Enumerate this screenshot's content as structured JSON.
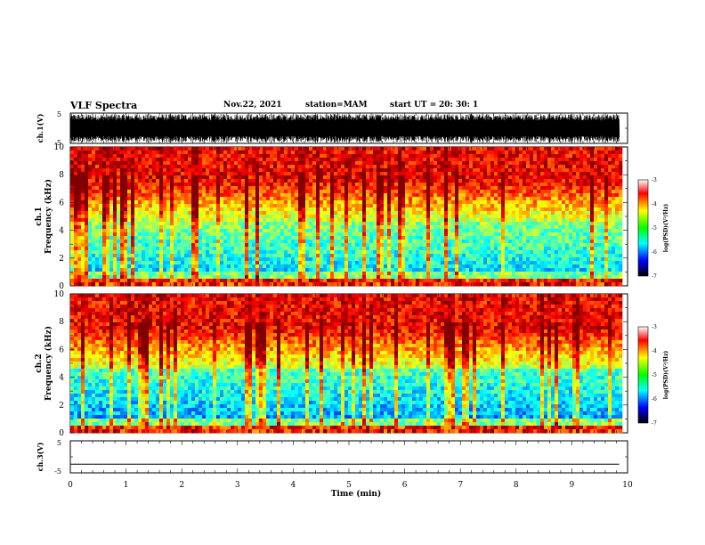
{
  "header": {
    "title": "VLF Spectra",
    "date": "Nov.22, 2021",
    "station": "station=MAM",
    "start_label": "start  UT  =",
    "start_time": "20: 30: 1"
  },
  "chart_data": [
    {
      "type": "line",
      "name": "ch1-waveform",
      "ylabel": "ch.1(V)",
      "ylim": [
        -5,
        5
      ],
      "yticks": [
        "5",
        "-5"
      ],
      "xlim": [
        0,
        10
      ],
      "note": "dense waveform trace"
    },
    {
      "type": "heatmap",
      "name": "ch1-spectrogram",
      "ylabel_top": "ch.1",
      "ylabel": "Frequency  (kHz)",
      "ylim": [
        0,
        10
      ],
      "yticks": [
        "0",
        "2",
        "4",
        "6",
        "8",
        "10"
      ],
      "xlim": [
        0,
        10
      ],
      "colorbar": {
        "label": "log(PSD)(V²/Hz)",
        "ticks": [
          "-3",
          "-4",
          "-5",
          "-6",
          "-7"
        ],
        "range": [
          -7,
          -3
        ]
      }
    },
    {
      "type": "heatmap",
      "name": "ch2-spectrogram",
      "ylabel_top": "ch.2",
      "ylabel": "Frequency  (kHz)",
      "ylim": [
        0,
        10
      ],
      "yticks": [
        "0",
        "2",
        "4",
        "6",
        "8",
        "10"
      ],
      "xlim": [
        0,
        10
      ],
      "colorbar": {
        "label": "log(PSD)(V²/Hz)",
        "ticks": [
          "-3",
          "-4",
          "-5",
          "-6",
          "-7"
        ],
        "range": [
          -7,
          -3
        ]
      }
    },
    {
      "type": "line",
      "name": "ch3-waveform",
      "ylabel": "ch.3(V)",
      "ylim": [
        -5,
        5
      ],
      "yticks": [
        "5",
        "-5"
      ],
      "xlim": [
        0,
        10
      ],
      "xlabel": "Time  (min)",
      "xticks": [
        "0",
        "1",
        "2",
        "3",
        "4",
        "5",
        "6",
        "7",
        "8",
        "9",
        "10"
      ],
      "data_end_min": 9.85,
      "x": [
        0,
        9.85
      ],
      "y": [
        -2.3,
        -2.3
      ]
    }
  ]
}
